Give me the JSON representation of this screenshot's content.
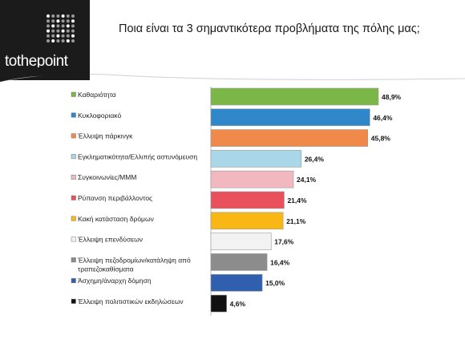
{
  "logo": {
    "text": "tothepoint"
  },
  "page_title": "Ποια είναι τα 3 σημαντικότερα προβλήματα της πόλης μας;",
  "chart_data": {
    "type": "bar",
    "orientation": "horizontal",
    "title": "Ποια είναι τα 3 σημαντικότερα προβλήματα της πόλης μας;",
    "xlabel": "",
    "ylabel": "",
    "xlim": [
      0,
      50
    ],
    "grid": false,
    "legend": "left (colored square marker beside each category)",
    "categories": [
      "Καθαριότητα",
      "Κυκλοφοριακό",
      "Έλλειψη πάρκινγκ",
      "Εγκληματικότητα/Ελλιπής αστυνόμευση",
      "Συγκοινωνίες/ΜΜΜ",
      "Ρύπανση περιβάλλοντος",
      "Κακή κατάσταση δρόμων",
      "Έλλειψη επενδύσεων",
      "Έλλειψη πεζοδρομίων/κατάληψη από τραπεζοκαθίσματα",
      "Άσχημη/άναρχη δόμηση",
      "Έλλειψη πολιτιστικών εκδηλώσεων"
    ],
    "category_lines": [
      [
        "Καθαριότητα"
      ],
      [
        "Κυκλοφοριακό"
      ],
      [
        "Έλλειψη πάρκινγκ"
      ],
      [
        "Εγκληματικότητα/Ελλιπής αστυνόμευση"
      ],
      [
        "Συγκοινωνίες/ΜΜΜ"
      ],
      [
        "Ρύπανση περιβάλλοντος"
      ],
      [
        "Κακή κατάσταση δρόμων"
      ],
      [
        "Έλλειψη επενδύσεων"
      ],
      [
        "Έλλειψη πεζοδρομίων/κατάληψη από",
        "τραπεζοκαθίσματα"
      ],
      [
        "Άσχημη/άναρχη δόμηση"
      ],
      [
        "Έλλειψη πολιτιστικών εκδηλώσεων"
      ]
    ],
    "values": [
      48.9,
      46.4,
      45.8,
      26.4,
      24.1,
      21.4,
      21.1,
      17.6,
      16.4,
      15.0,
      4.6
    ],
    "value_labels": [
      "48,9%",
      "46,4%",
      "45,8%",
      "26,4%",
      "24,1%",
      "21,4%",
      "21,1%",
      "17,6%",
      "16,4%",
      "15,0%",
      "4,6%"
    ],
    "colors": [
      "#7ab648",
      "#2f86c8",
      "#f08a4b",
      "#a9d7e8",
      "#f2b8c0",
      "#e8505b",
      "#f9b716",
      "#f2f2f2",
      "#8c8c8c",
      "#2f5fae",
      "#111111"
    ]
  }
}
